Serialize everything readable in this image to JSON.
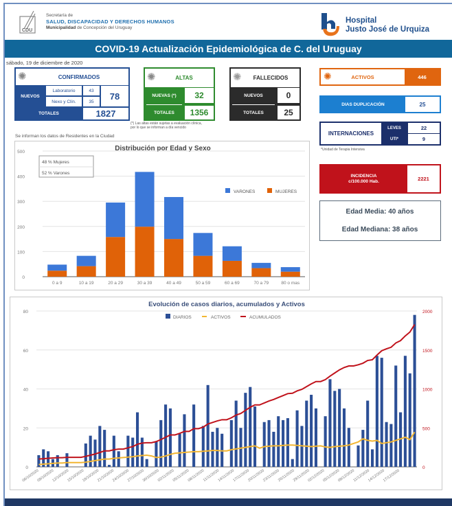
{
  "header": {
    "secretaria_line1": "Secretaría de",
    "secretaria_line2": "SALUD, DISCAPACIDAD Y DERECHOS HUMANOS",
    "secretaria_line3_bold": "Municipalidad",
    "secretaria_line3_rest": " de Concepción del Uruguay",
    "logo_text": "CDU",
    "hospital_line1": "Hospital",
    "hospital_line2": "Justo José de Urquiza"
  },
  "title": "COVID-19 Actualización Epidemiológica de C. del Uruguay",
  "date": "sábado, 19 de diciembre de 2020",
  "confirmados": {
    "title": "CONFIRMADOS",
    "nuevos_label": "NUEVOS",
    "laboratorio_label": "Laboratorio",
    "laboratorio_value": "43",
    "nexo_label": "Nexo y Clín.",
    "nexo_value": "35",
    "nuevos_total": "78",
    "totales_label": "TOTALES",
    "totales_value": "1827"
  },
  "altas": {
    "title": "ALTAS",
    "nuevas_label": "NUEVAS (*)",
    "nuevas_value": "32",
    "totales_label": "TOTALES",
    "totales_value": "1356",
    "note_line1": "(*) Las altas están sujetas a evaluación clínica,",
    "note_line2": "por lo que se informan a día vencido"
  },
  "fallecidos": {
    "title": "FALLECIDOS",
    "nuevos_label": "NUEVOS",
    "nuevos_value": "0",
    "totales_label": "TOTALES",
    "totales_value": "25"
  },
  "activos": {
    "label": "ACTIVOS",
    "value": "446"
  },
  "dias_duplicacion": {
    "label": "DIAS DUPLICACIÓN",
    "value": "25"
  },
  "internaciones": {
    "label": "INTERNACIONES",
    "leves_label": "LEVES",
    "leves_value": "22",
    "uti_label": "UTI*",
    "uti_value": "9",
    "note": "*Unidad de Terapia Intensiva"
  },
  "incidencia": {
    "label_line1": "INCIDENCIA",
    "label_line2": "c/100.000 Hab.",
    "value": "2221"
  },
  "edad": {
    "media": "Edad Media: 40 años",
    "mediana": "Edad Mediana: 38 años"
  },
  "residentes_note": "Se informan los datos de Residentes en la Ciudad",
  "colors": {
    "blue_dark": "#244f94",
    "green": "#2e8b2e",
    "black": "#2b2b2b",
    "orange": "#e0650f",
    "blue_bright": "#1c7fd0",
    "navy": "#1b2f6b",
    "red": "#c0121b",
    "varones": "#3c78d8",
    "mujeres": "#e06208",
    "diarios": "#2c4f96",
    "activos_line": "#f2b632",
    "acumulados_line": "#c0121b",
    "title_bar": "#11679a"
  },
  "chart_data": [
    {
      "type": "bar",
      "stacked": true,
      "title": "Distribución por Edad y Sexo",
      "categories": [
        "0 a 9",
        "10 a 19",
        "20 a 29",
        "30 a 39",
        "40 a 49",
        "50 a 59",
        "60 a 69",
        "70 a 79",
        "80 o mas"
      ],
      "series": [
        {
          "name": "MUJERES",
          "values": [
            24,
            42,
            158,
            199,
            150,
            83,
            63,
            34,
            20
          ]
        },
        {
          "name": "VARONES",
          "values": [
            24,
            41,
            137,
            218,
            167,
            91,
            58,
            21,
            18
          ]
        }
      ],
      "ylim": [
        0,
        500
      ],
      "yticks": [
        0,
        100,
        200,
        300,
        400,
        500
      ],
      "legend": "right",
      "annotation": [
        "48 % Mujeres",
        "52 % Varones"
      ],
      "grid": true
    },
    {
      "type": "bar+line",
      "title": "Evolución de casos diarios, acumulados y Activos",
      "legend": [
        "DIARIOS",
        "ACTIVOS",
        "ACUMULADOS"
      ],
      "legend_position": "top",
      "x_labels": [
        "06/10/2020",
        "09/10/2020",
        "12/10/2020",
        "15/10/2020",
        "18/10/2020",
        "21/10/2020",
        "24/10/2020",
        "27/10/2020",
        "30/10/2020",
        "02/11/2020",
        "05/11/2020",
        "08/11/2020",
        "11/11/2020",
        "14/11/2020",
        "17/11/2020",
        "20/11/2020",
        "23/11/2020",
        "26/11/2020",
        "29/11/2020",
        "02/12/2020",
        "05/12/2020",
        "08/12/2020",
        "11/12/2020",
        "14/12/2020",
        "17/12/2020"
      ],
      "y_left": {
        "range": [
          0,
          80
        ],
        "ticks": [
          0,
          20,
          40,
          60,
          80
        ]
      },
      "y_right": {
        "range": [
          0,
          2000
        ],
        "ticks": [
          0,
          500,
          1000,
          1500,
          2000
        ]
      },
      "diarios": [
        6,
        9,
        8,
        4,
        6,
        0,
        7,
        0,
        0,
        0,
        12,
        16,
        14,
        21,
        19,
        1,
        16,
        8,
        0,
        16,
        15,
        28,
        15,
        4,
        0,
        13,
        24,
        32,
        30,
        0,
        17,
        27,
        0,
        32,
        0,
        21,
        42,
        18,
        20,
        17,
        0,
        24,
        34,
        20,
        38,
        41,
        31,
        0,
        23,
        24,
        18,
        26,
        24,
        25,
        4,
        29,
        21,
        34,
        37,
        30,
        0,
        26,
        45,
        39,
        40,
        30,
        20,
        0,
        11,
        19,
        34,
        9,
        57,
        56,
        23,
        22,
        52,
        28,
        57,
        48,
        78
      ],
      "activos": [
        30,
        35,
        40,
        45,
        50,
        50,
        55,
        55,
        55,
        55,
        60,
        70,
        80,
        90,
        100,
        100,
        110,
        115,
        120,
        125,
        130,
        140,
        145,
        150,
        140,
        120,
        125,
        140,
        160,
        175,
        180,
        185,
        190,
        195,
        195,
        200,
        205,
        210,
        210,
        205,
        205,
        220,
        230,
        240,
        250,
        260,
        270,
        240,
        260,
        265,
        270,
        270,
        275,
        280,
        280,
        275,
        270,
        265,
        260,
        265,
        270,
        255,
        250,
        260,
        265,
        270,
        280,
        300,
        320,
        360,
        340,
        330,
        340,
        300,
        310,
        320,
        340,
        360,
        380,
        350,
        446
      ],
      "acumulados": [
        100,
        105,
        110,
        115,
        118,
        118,
        122,
        122,
        122,
        122,
        135,
        150,
        165,
        185,
        205,
        205,
        220,
        228,
        228,
        245,
        260,
        290,
        305,
        310,
        310,
        325,
        350,
        380,
        410,
        410,
        430,
        455,
        455,
        490,
        490,
        510,
        550,
        570,
        590,
        605,
        605,
        630,
        665,
        685,
        725,
        765,
        795,
        795,
        820,
        845,
        865,
        890,
        915,
        940,
        945,
        975,
        995,
        1030,
        1065,
        1095,
        1095,
        1120,
        1165,
        1205,
        1245,
        1275,
        1295,
        1295,
        1310,
        1330,
        1365,
        1375,
        1435,
        1490,
        1515,
        1535,
        1590,
        1620,
        1680,
        1730,
        1827
      ]
    }
  ]
}
